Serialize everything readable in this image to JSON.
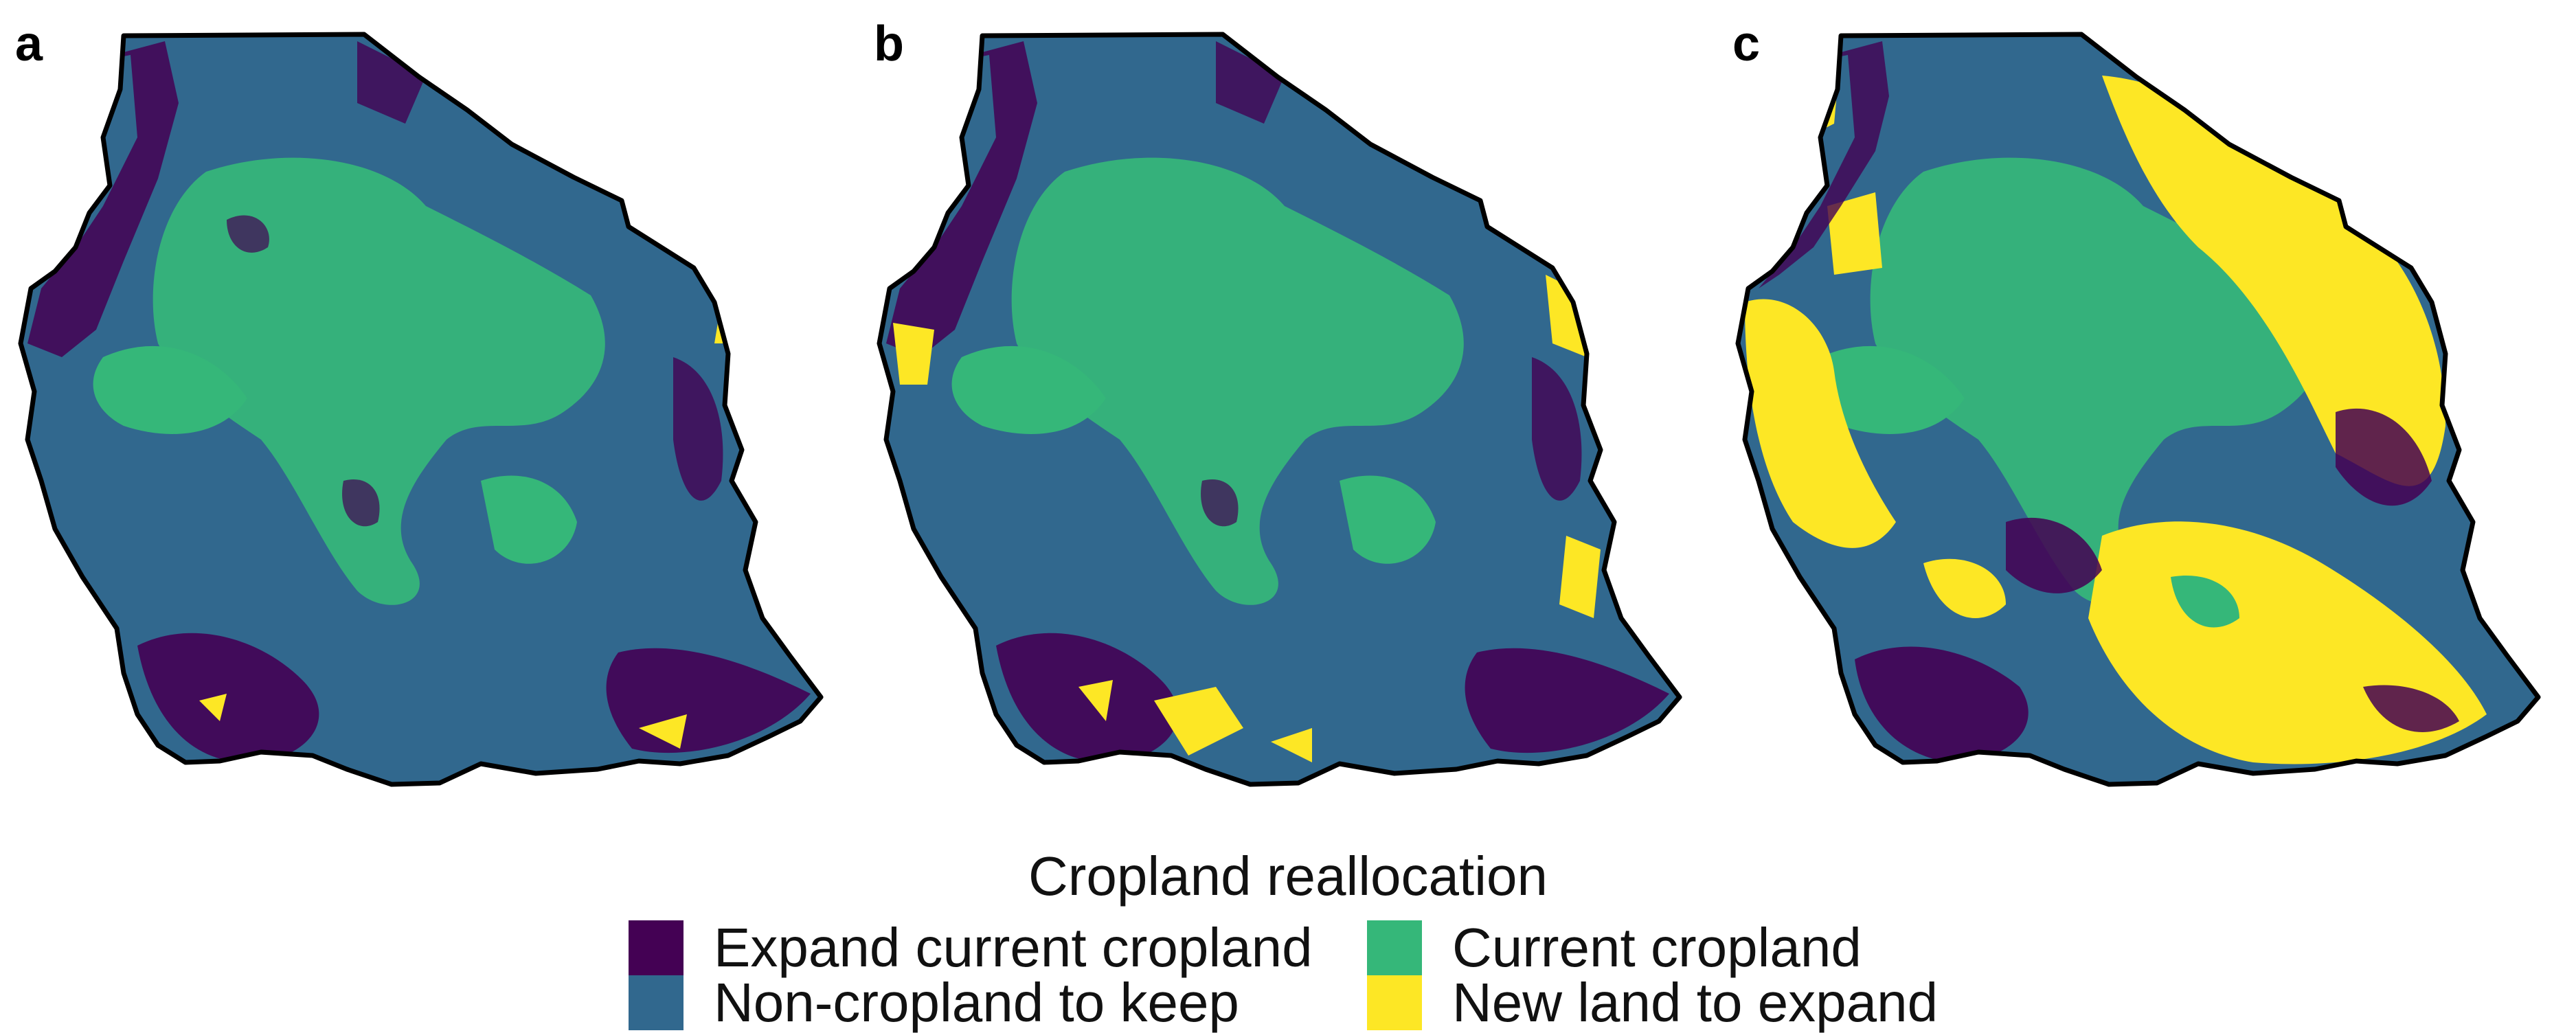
{
  "colors": {
    "expand_current": "#440154",
    "non_cropland_keep": "#31688e",
    "current_cropland": "#35b779",
    "new_land": "#fde725",
    "border": "#000000"
  },
  "panels": [
    {
      "label": "a"
    },
    {
      "label": "b"
    },
    {
      "label": "c"
    }
  ],
  "legend": {
    "title": "Cropland reallocation",
    "items": [
      {
        "label": "Expand current cropland",
        "color": "#440154"
      },
      {
        "label": "Current cropland",
        "color": "#35b779"
      },
      {
        "label": "Non-cropland to keep",
        "color": "#31688e"
      },
      {
        "label": "New land to expand",
        "color": "#fde725"
      }
    ]
  }
}
